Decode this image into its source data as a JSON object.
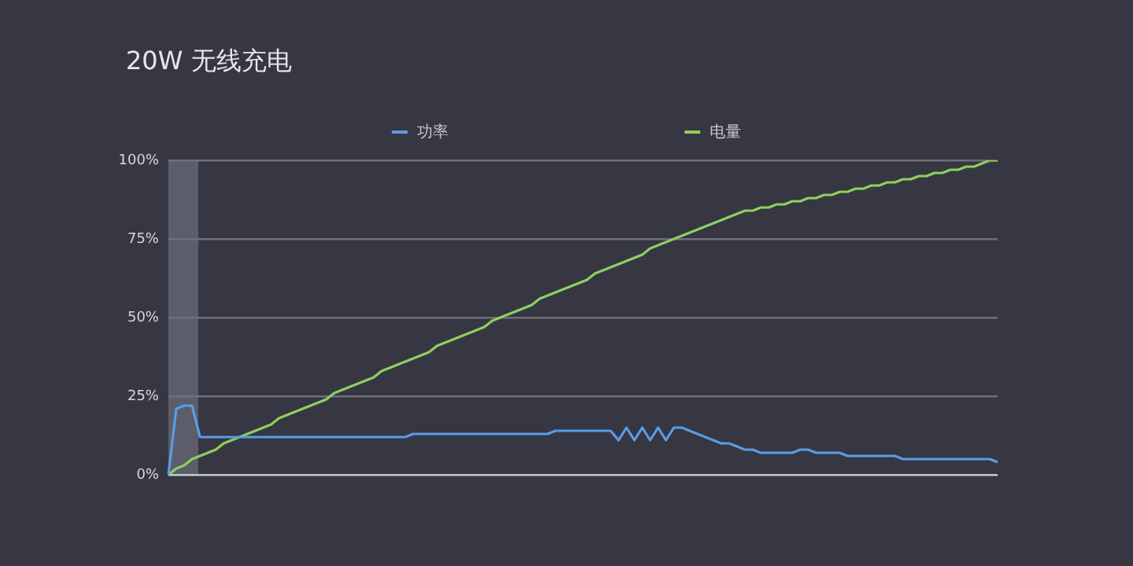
{
  "chart_data": {
    "type": "line",
    "title": "20W 无线充电",
    "categories": [
      null,
      null,
      null,
      null,
      null,
      null,
      null,
      null,
      null,
      null,
      null,
      null,
      null,
      null,
      null,
      null,
      null,
      null,
      null,
      null,
      null,
      null,
      null,
      null,
      null,
      null,
      null,
      null,
      null,
      null,
      null,
      null,
      null,
      null,
      null,
      null,
      null,
      null,
      null,
      null,
      null,
      null,
      null,
      null,
      null,
      null,
      null,
      null,
      null,
      null,
      null,
      null,
      null,
      null,
      null,
      null,
      null,
      null,
      null,
      null,
      null,
      null,
      null,
      null,
      null,
      null,
      null,
      null,
      null,
      null,
      null,
      null,
      null,
      null,
      null,
      null,
      null,
      null,
      null,
      null,
      null,
      null,
      null,
      null,
      null,
      null,
      null,
      null,
      null,
      null,
      null,
      null,
      null,
      null,
      null,
      null,
      null,
      null,
      null,
      null,
      null,
      null,
      null,
      null,
      null,
      null
    ],
    "series": [
      {
        "name": "功率",
        "color": "#5b9be6",
        "values": [
          0,
          21,
          22,
          22,
          12,
          12,
          12,
          12,
          12,
          12,
          12,
          12,
          12,
          12,
          12,
          12,
          12,
          12,
          12,
          12,
          12,
          12,
          12,
          12,
          12,
          12,
          12,
          12,
          12,
          12,
          12,
          13,
          13,
          13,
          13,
          13,
          13,
          13,
          13,
          13,
          13,
          13,
          13,
          13,
          13,
          13,
          13,
          13,
          13,
          14,
          14,
          14,
          14,
          14,
          14,
          14,
          14,
          11,
          15,
          11,
          15,
          11,
          15,
          11,
          15,
          15,
          14,
          13,
          12,
          11,
          10,
          10,
          9,
          8,
          8,
          7,
          7,
          7,
          7,
          7,
          8,
          8,
          7,
          7,
          7,
          7,
          6,
          6,
          6,
          6,
          6,
          6,
          6,
          5,
          5,
          5,
          5,
          5,
          5,
          5,
          5,
          5,
          5,
          5,
          5,
          4
        ]
      },
      {
        "name": "电量",
        "color": "#8fcf5f",
        "values": [
          0,
          2,
          3,
          5,
          6,
          7,
          8,
          10,
          11,
          12,
          13,
          14,
          15,
          16,
          18,
          19,
          20,
          21,
          22,
          23,
          24,
          26,
          27,
          28,
          29,
          30,
          31,
          33,
          34,
          35,
          36,
          37,
          38,
          39,
          41,
          42,
          43,
          44,
          45,
          46,
          47,
          49,
          50,
          51,
          52,
          53,
          54,
          56,
          57,
          58,
          59,
          60,
          61,
          62,
          64,
          65,
          66,
          67,
          68,
          69,
          70,
          72,
          73,
          74,
          75,
          76,
          77,
          78,
          79,
          80,
          81,
          82,
          83,
          84,
          84,
          85,
          85,
          86,
          86,
          87,
          87,
          88,
          88,
          89,
          89,
          90,
          90,
          91,
          91,
          92,
          92,
          93,
          93,
          94,
          94,
          95,
          95,
          96,
          96,
          97,
          97,
          98,
          98,
          99,
          100,
          100
        ]
      }
    ],
    "ylim": [
      0,
      100
    ],
    "yticks": [
      {
        "value": 0,
        "label": "0%"
      },
      {
        "value": 25,
        "label": "25%"
      },
      {
        "value": 50,
        "label": "50%"
      },
      {
        "value": 75,
        "label": "75%"
      },
      {
        "value": 100,
        "label": "100%"
      }
    ],
    "grid": "y",
    "legend": "top",
    "marker": "none",
    "line_style": "solid",
    "tick_labels": "y"
  }
}
